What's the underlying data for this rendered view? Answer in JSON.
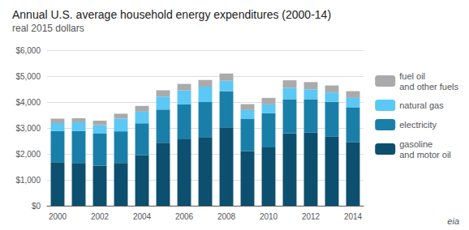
{
  "chart_data": {
    "type": "bar",
    "title": "Annual U.S. average household energy expenditures (2000-14)",
    "subtitle": "real 2015 dollars",
    "categories": [
      "2000",
      null,
      "2002",
      null,
      "2004",
      null,
      "2006",
      null,
      "2008",
      null,
      "2010",
      null,
      "2012",
      null,
      "2014"
    ],
    "series": [
      {
        "name": "gasoline\nand motor oil",
        "color": "#0d4f6e",
        "values": [
          1680,
          1650,
          1550,
          1650,
          1950,
          2430,
          2560,
          2650,
          3020,
          2110,
          2250,
          2800,
          2820,
          2660,
          2450
        ]
      },
      {
        "name": "electricity",
        "color": "#1a7fa8",
        "values": [
          1200,
          1230,
          1230,
          1220,
          1230,
          1280,
          1350,
          1350,
          1400,
          1250,
          1320,
          1310,
          1290,
          1350,
          1350
        ]
      },
      {
        "name": "natural gas",
        "color": "#5bc8f5",
        "values": [
          310,
          340,
          330,
          490,
          450,
          500,
          540,
          590,
          400,
          330,
          340,
          440,
          380,
          360,
          360
        ]
      },
      {
        "name": "fuel oil\nand other fuels",
        "color": "#aaaaaa",
        "values": [
          170,
          155,
          170,
          190,
          220,
          245,
          250,
          265,
          280,
          230,
          250,
          290,
          280,
          270,
          260
        ]
      }
    ],
    "stacked": true,
    "ylim": [
      0,
      6000
    ],
    "yticks": [
      {
        "value": 0,
        "label": "$0"
      },
      {
        "value": 1000,
        "label": "$1,000"
      },
      {
        "value": 2000,
        "label": "$2,000"
      },
      {
        "value": 3000,
        "label": "$3,000"
      },
      {
        "value": 4000,
        "label": "$4,000"
      },
      {
        "value": 5000,
        "label": "$5,000"
      },
      {
        "value": 6000,
        "label": "$6,000"
      }
    ],
    "grid": true,
    "legend": "right",
    "annotations": [
      "eia"
    ]
  }
}
